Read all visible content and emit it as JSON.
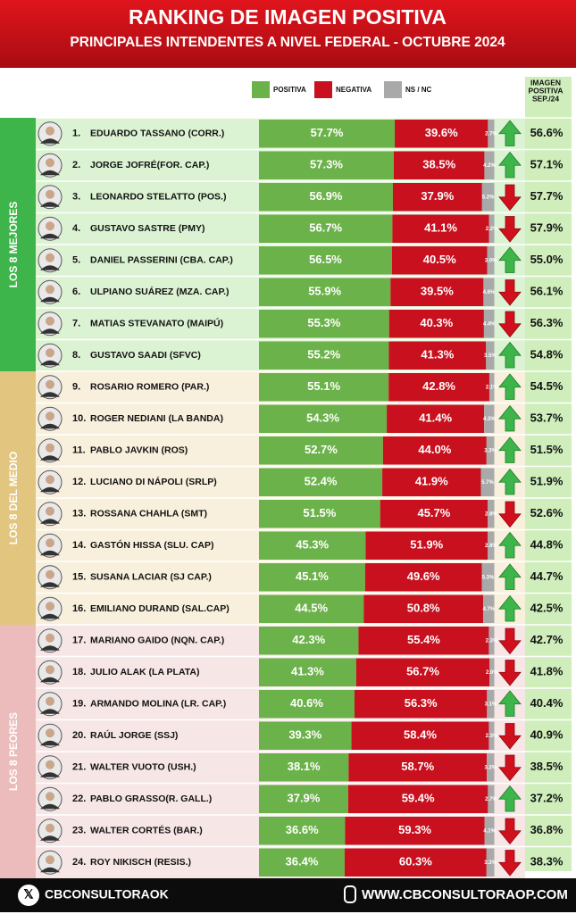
{
  "chart_data": {
    "type": "bar",
    "orientation": "horizontal",
    "stacked": true,
    "title": "RANKING DE IMAGEN POSITIVA",
    "subtitle": "PRINCIPALES INTENDENTES A NIVEL FEDERAL - OCTUBRE 2024",
    "ranks": [
      "1.",
      "2.",
      "3.",
      "4.",
      "5.",
      "6.",
      "7.",
      "8.",
      "9.",
      "10.",
      "11.",
      "12.",
      "13.",
      "14.",
      "15.",
      "16.",
      "17.",
      "18.",
      "19.",
      "20.",
      "21.",
      "22.",
      "23.",
      "24."
    ],
    "categories": [
      "EDUARDO TASSANO (CORR.)",
      "JORGE JOFRÉ(FOR. CAP.)",
      "LEONARDO STELATTO (POS.)",
      "GUSTAVO SASTRE (PMY)",
      "DANIEL PASSERINI (CBA. CAP.)",
      "ULPIANO SUÁREZ (MZA. CAP.)",
      "MATIAS STEVANATO (MAIPÚ)",
      "GUSTAVO SAADI (SFVC)",
      "ROSARIO ROMERO (PAR.)",
      "ROGER NEDIANI (LA BANDA)",
      "PABLO JAVKIN (ROS)",
      "LUCIANO DI NÁPOLI (SRLP)",
      "ROSSANA CHAHLA (SMT)",
      "GASTÓN HISSA (SLU. CAP)",
      "SUSANA LACIAR (SJ CAP.)",
      "EMILIANO DURAND (SAL.CAP)",
      "MARIANO GAIDO (NQN. CAP.)",
      "JULIO ALAK (LA PLATA)",
      "ARMANDO MOLINA (LR. CAP.)",
      "RAÚL JORGE (SSJ)",
      "WALTER VUOTO (USH.)",
      "PABLO GRASSO(R. GALL.)",
      "WALTER CORTÉS (BAR.)",
      "ROY NIKISCH (RESIS.)"
    ],
    "series": [
      {
        "name": "POSITIVA",
        "color": "#6cb24a",
        "values": [
          57.7,
          57.3,
          56.9,
          56.7,
          56.5,
          55.9,
          55.3,
          55.2,
          55.1,
          54.3,
          52.7,
          52.4,
          51.5,
          45.3,
          45.1,
          44.5,
          42.3,
          41.3,
          40.6,
          39.3,
          38.1,
          37.9,
          36.6,
          36.4
        ],
        "value_labels": [
          "57.7%",
          "57.3%",
          "56.9%",
          "56.7%",
          "56.5%",
          "55.9%",
          "55.3%",
          "55.2%",
          "55.1%",
          "54.3%",
          "52.7%",
          "52.4%",
          "51.5%",
          "45.3%",
          "45.1%",
          "44.5%",
          "42.3%",
          "41.3%",
          "40.6%",
          "39.3%",
          "38.1%",
          "37.9%",
          "36.6%",
          "36.4%"
        ]
      },
      {
        "name": "NEGATIVA",
        "color": "#c8101e",
        "values": [
          39.6,
          38.5,
          37.9,
          41.1,
          40.5,
          39.5,
          40.3,
          41.3,
          42.8,
          41.4,
          44.0,
          41.9,
          45.7,
          51.9,
          49.6,
          50.8,
          55.4,
          56.7,
          56.3,
          58.4,
          58.7,
          59.4,
          59.3,
          60.3
        ],
        "value_labels": [
          "39.6%",
          "38.5%",
          "37.9%",
          "41.1%",
          "40.5%",
          "39.5%",
          "40.3%",
          "41.3%",
          "42.8%",
          "41.4%",
          "44.0%",
          "41.9%",
          "45.7%",
          "51.9%",
          "49.6%",
          "50.8%",
          "55.4%",
          "56.7%",
          "56.3%",
          "58.4%",
          "58.7%",
          "59.4%",
          "59.3%",
          "60.3%"
        ]
      },
      {
        "name": "NS / NC",
        "color": "#a9a9a9",
        "values": [
          2.7,
          4.2,
          5.2,
          2.2,
          3.0,
          4.6,
          4.4,
          3.5,
          2.1,
          4.3,
          3.3,
          5.7,
          2.8,
          2.8,
          5.3,
          4.7,
          2.3,
          2.0,
          3.1,
          2.3,
          3.2,
          2.7,
          4.1,
          3.3
        ],
        "value_labels": [
          "2.7%",
          "4.2%",
          "5.2%",
          "2.2%",
          "3.0%",
          "4.6%",
          "4.4%",
          "3.5%",
          "2.1%",
          "4.3%",
          "3.3%",
          "5.7%",
          "2.8%",
          "2.8%",
          "5.3%",
          "4.7%",
          "2.3%",
          "2.0%",
          "3.1%",
          "2.3%",
          "3.2%",
          "2.7%",
          "4.1%",
          "3.3%"
        ]
      }
    ],
    "trend": [
      "up",
      "up",
      "down",
      "down",
      "up",
      "down",
      "down",
      "up",
      "up",
      "up",
      "up",
      "up",
      "down",
      "up",
      "up",
      "up",
      "down",
      "down",
      "up",
      "down",
      "down",
      "up",
      "down",
      "down"
    ],
    "previous": {
      "title": [
        "IMAGEN",
        "POSITIVA",
        "SEP./24"
      ],
      "values": [
        56.6,
        57.1,
        57.7,
        57.9,
        55.0,
        56.1,
        56.3,
        54.8,
        54.5,
        53.7,
        51.5,
        51.9,
        52.6,
        44.8,
        44.7,
        42.5,
        42.7,
        41.8,
        40.4,
        40.9,
        38.5,
        37.2,
        36.8,
        38.3
      ],
      "value_labels": [
        "56.6%",
        "57.1%",
        "57.7%",
        "57.9%",
        "55.0%",
        "56.1%",
        "56.3%",
        "54.8%",
        "54.5%",
        "53.7%",
        "51.5%",
        "51.9%",
        "52.6%",
        "44.8%",
        "44.7%",
        "42.5%",
        "42.7%",
        "41.8%",
        "40.4%",
        "40.9%",
        "38.5%",
        "37.2%",
        "36.8%",
        "38.3%"
      ]
    },
    "groups": [
      {
        "label": "LOS 8 MEJORES",
        "color": "#3db54a",
        "background": "#dcf3d3"
      },
      {
        "label": "LOS 8 DEL MEDIO",
        "color": "#e2c57e",
        "background": "#f8f0dc"
      },
      {
        "label": "LOS 8 PEORES",
        "color": "#ecbcbc",
        "background": "#f7e6e6"
      }
    ],
    "footer": {
      "social": "CBCONSULTORAOK",
      "website": "WWW.CBCONSULTORAOP.COM"
    }
  }
}
